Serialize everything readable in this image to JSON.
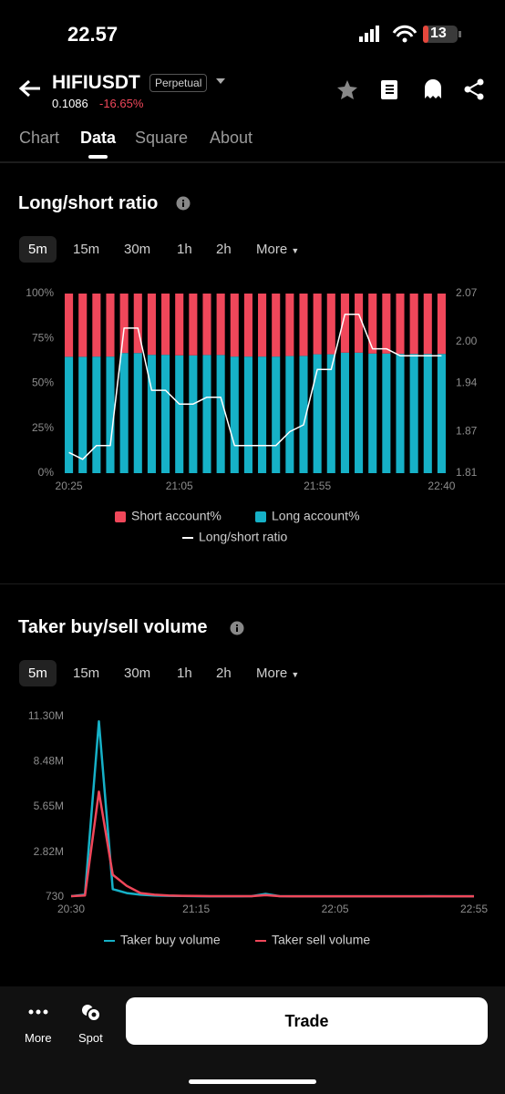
{
  "status_bar": {
    "time": "22.57",
    "battery": "13"
  },
  "header": {
    "symbol": "HIFIUSDT",
    "badge": "Perpetual",
    "price": "0.1086",
    "change": "-16.65%"
  },
  "tabs": [
    "Chart",
    "Data",
    "Square",
    "About"
  ],
  "sections": [
    {
      "title": "Long/short ratio",
      "intervals": [
        "5m",
        "15m",
        "30m",
        "1h",
        "2h",
        "More"
      ]
    },
    {
      "title": "Taker buy/sell volume",
      "intervals": [
        "5m",
        "15m",
        "30m",
        "1h",
        "2h",
        "More"
      ]
    }
  ],
  "chart_data": [
    {
      "type": "bar",
      "stacked": true,
      "categories": [
        "20:25",
        null,
        null,
        null,
        null,
        null,
        null,
        null,
        "21:05",
        null,
        null,
        null,
        null,
        null,
        null,
        null,
        null,
        null,
        "21:55",
        null,
        null,
        null,
        null,
        null,
        null,
        null,
        null,
        "22:40"
      ],
      "series": [
        {
          "name": "Short account%",
          "color": "#f0475a",
          "values": [
            35.2,
            35.2,
            35.1,
            35.1,
            33.1,
            33.1,
            34.1,
            34.1,
            34.4,
            34.4,
            34.2,
            34.2,
            35.1,
            35.1,
            35.1,
            35.1,
            34.8,
            34.7,
            33.8,
            33.8,
            32.9,
            32.9,
            33.4,
            33.4,
            33.6,
            33.6,
            33.6,
            33.6
          ]
        },
        {
          "name": "Long account%",
          "color": "#16b1c7",
          "values": [
            64.8,
            64.8,
            64.9,
            64.9,
            66.9,
            66.9,
            65.9,
            65.9,
            65.6,
            65.6,
            65.8,
            65.8,
            64.9,
            64.9,
            64.9,
            64.9,
            65.2,
            65.3,
            66.2,
            66.2,
            67.1,
            67.1,
            66.6,
            66.6,
            66.4,
            66.4,
            66.4,
            66.4
          ]
        },
        {
          "name": "Long/short ratio",
          "color": "#ffffff",
          "type": "line",
          "axis": "y2",
          "values": [
            1.84,
            1.83,
            1.85,
            1.85,
            2.02,
            2.02,
            1.93,
            1.93,
            1.91,
            1.91,
            1.92,
            1.92,
            1.85,
            1.85,
            1.85,
            1.85,
            1.87,
            1.88,
            1.96,
            1.96,
            2.04,
            2.04,
            1.99,
            1.99,
            1.98,
            1.98,
            1.98,
            1.98
          ]
        }
      ],
      "ylim": [
        0,
        100
      ],
      "yticks": [
        {
          "value": 0,
          "label": "0%"
        },
        {
          "value": 25,
          "label": "25%"
        },
        {
          "value": 50,
          "label": "50%"
        },
        {
          "value": 75,
          "label": "75%"
        },
        {
          "value": 100,
          "label": "100%"
        }
      ],
      "y2lim": [
        1.81,
        2.07
      ],
      "y2ticks": [
        1.81,
        1.87,
        1.94,
        {
          "value": 2,
          "label": "2.00"
        },
        2.07
      ],
      "grid": false
    },
    {
      "type": "line",
      "categories": [
        "20:30",
        null,
        null,
        null,
        null,
        null,
        null,
        null,
        null,
        "21:15",
        null,
        null,
        null,
        null,
        null,
        null,
        null,
        null,
        null,
        "22:05",
        null,
        null,
        null,
        null,
        null,
        null,
        null,
        null,
        null,
        "22:55"
      ],
      "series": [
        {
          "name": "Taker buy volume",
          "color": "#16b1c7",
          "values": [
            60000,
            150000,
            11000000,
            500000,
            250000,
            150000,
            100000,
            80000,
            70000,
            60000,
            50000,
            50000,
            50000,
            60000,
            200000,
            60000,
            50000,
            50000,
            50000,
            50000,
            50000,
            50000,
            50000,
            50000,
            50000,
            50000,
            60000,
            50000,
            50000,
            50000
          ]
        },
        {
          "name": "Taker sell volume",
          "color": "#f0475a",
          "values": [
            60000,
            100000,
            6600000,
            1400000,
            700000,
            250000,
            150000,
            100000,
            80000,
            70000,
            60000,
            60000,
            60000,
            60000,
            120000,
            60000,
            50000,
            50000,
            50000,
            50000,
            50000,
            50000,
            50000,
            50000,
            50000,
            50000,
            50000,
            50000,
            50000,
            50000
          ]
        }
      ],
      "ylim": [
        730,
        11300000
      ],
      "yticks": [
        730,
        {
          "value": 2820000,
          "label": "2.82M"
        },
        {
          "value": 5650000,
          "label": "5.65M"
        },
        {
          "value": 8480000,
          "label": "8.48M"
        },
        {
          "value": 11300000,
          "label": "11.30M"
        }
      ],
      "grid": false
    }
  ],
  "bottom_bar": {
    "more": "More",
    "spot": "Spot",
    "trade": "Trade"
  }
}
